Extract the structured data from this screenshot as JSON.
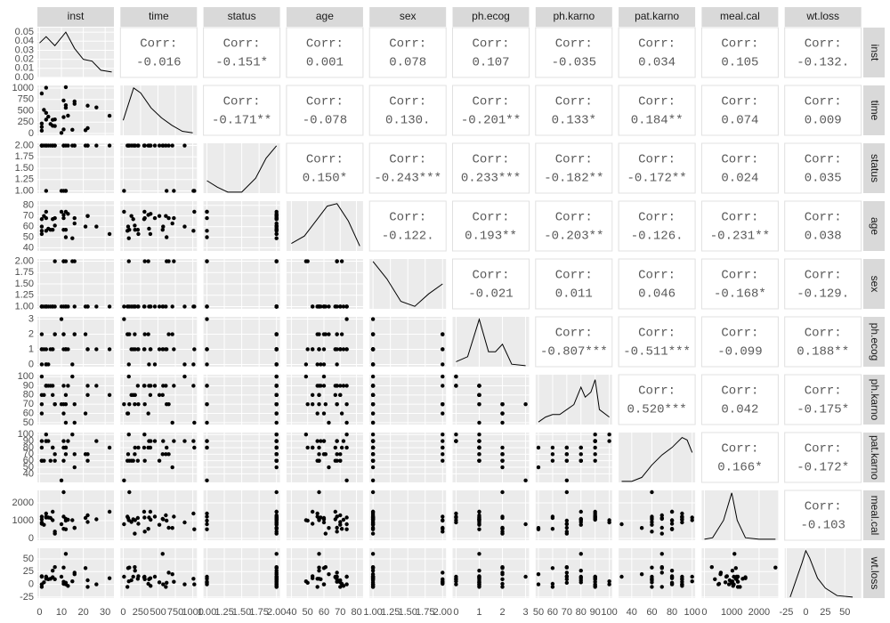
{
  "chart_data": {
    "type": "scatter-matrix",
    "corr_label": "Corr:",
    "variables": [
      {
        "name": "inst",
        "lim": [
          -1,
          34
        ],
        "ticks": [
          0,
          10,
          20,
          30
        ],
        "yticks": [
          {
            "value": 0,
            "label": "0.00"
          },
          {
            "value": 0.01,
            "label": "0.01"
          },
          {
            "value": 0.02,
            "label": "0.02"
          },
          {
            "value": 0.03,
            "label": "0.03"
          },
          {
            "value": 0.04,
            "label": "0.04"
          },
          {
            "value": 0.05,
            "label": "0.05"
          }
        ],
        "density_x": [
          0,
          3,
          7,
          12,
          16,
          20,
          24,
          28,
          33
        ],
        "density_y": [
          0.038,
          0.045,
          0.035,
          0.05,
          0.032,
          0.02,
          0.018,
          0.008,
          0.006
        ],
        "density_ylim": [
          0,
          0.055
        ],
        "values": [
          3,
          3,
          3,
          5,
          1,
          12,
          7,
          11,
          1,
          7,
          6,
          16,
          11,
          21,
          12,
          1,
          22,
          16,
          1,
          11,
          6,
          15,
          12,
          4,
          13,
          2,
          26,
          22,
          32,
          10
        ]
      },
      {
        "name": "time",
        "lim": [
          -40,
          1060
        ],
        "ticks": [
          0,
          250,
          500,
          750,
          1000
        ],
        "yticks": [
          0,
          250,
          500,
          750,
          1000
        ],
        "density_x": [
          0,
          150,
          250,
          400,
          550,
          700,
          850,
          1000
        ],
        "density_y": [
          0.3,
          0.95,
          0.85,
          0.55,
          0.35,
          0.2,
          0.08,
          0.05
        ],
        "density_ylim": [
          0,
          1
        ],
        "values": [
          306,
          455,
          1010,
          210,
          883,
          1022,
          310,
          361,
          218,
          166,
          170,
          654,
          728,
          71,
          567,
          144,
          613,
          707,
          61,
          88,
          301,
          81,
          624,
          371,
          394,
          520,
          574,
          118,
          390,
          12
        ]
      },
      {
        "name": "status",
        "lim": [
          0.95,
          2.05
        ],
        "ticks": [
          {
            "value": 1,
            "label": "1.00"
          },
          {
            "value": 1.25,
            "label": "1.25"
          },
          {
            "value": 1.5,
            "label": "1.50"
          },
          {
            "value": 1.75,
            "label": "1.75"
          },
          {
            "value": 2,
            "label": "2.00"
          }
        ],
        "yticks": [
          {
            "value": 1,
            "label": "1.00"
          },
          {
            "value": 1.25,
            "label": "1.25"
          },
          {
            "value": 1.5,
            "label": "1.50"
          },
          {
            "value": 1.75,
            "label": "1.75"
          },
          {
            "value": 2,
            "label": "2.00"
          }
        ],
        "density_x": [
          1,
          1.15,
          1.3,
          1.5,
          1.7,
          1.85,
          2
        ],
        "density_y": [
          0.25,
          0.12,
          0.02,
          0.02,
          0.3,
          0.7,
          0.95
        ],
        "density_ylim": [
          0,
          1
        ],
        "values": [
          2,
          2,
          1,
          2,
          2,
          1,
          2,
          2,
          2,
          2,
          2,
          2,
          1,
          2,
          2,
          2,
          2,
          2,
          2,
          2,
          2,
          2,
          1,
          2,
          2,
          2,
          2,
          2,
          2,
          1
        ]
      },
      {
        "name": "age",
        "lim": [
          37,
          84
        ],
        "ticks": [
          40,
          50,
          60,
          70,
          80
        ],
        "yticks": [
          40,
          50,
          60,
          70,
          80
        ],
        "density_x": [
          40,
          48,
          55,
          62,
          68,
          75,
          82
        ],
        "density_y": [
          0.15,
          0.3,
          0.6,
          0.9,
          0.95,
          0.6,
          0.1
        ],
        "density_ylim": [
          0,
          1
        ],
        "values": [
          74,
          68,
          56,
          57,
          60,
          74,
          68,
          71,
          53,
          61,
          57,
          68,
          68,
          60,
          57,
          67,
          70,
          63,
          56,
          57,
          67,
          49,
          50,
          58,
          72,
          70,
          60,
          70,
          53,
          74
        ]
      },
      {
        "name": "sex",
        "lim": [
          0.95,
          2.05
        ],
        "ticks": [
          {
            "value": 1,
            "label": "1.00"
          },
          {
            "value": 1.25,
            "label": "1.25"
          },
          {
            "value": 1.5,
            "label": "1.50"
          },
          {
            "value": 1.75,
            "label": "1.75"
          },
          {
            "value": 2,
            "label": "2.00"
          }
        ],
        "yticks": [
          {
            "value": 1,
            "label": "1.00"
          },
          {
            "value": 1.25,
            "label": "1.25"
          },
          {
            "value": 1.5,
            "label": "1.50"
          },
          {
            "value": 1.75,
            "label": "1.75"
          },
          {
            "value": 2,
            "label": "2.00"
          }
        ],
        "density_x": [
          1,
          1.2,
          1.4,
          1.6,
          1.8,
          2
        ],
        "density_y": [
          0.95,
          0.6,
          0.15,
          0.05,
          0.3,
          0.5
        ],
        "density_ylim": [
          0,
          1
        ],
        "values": [
          1,
          1,
          1,
          1,
          1,
          1,
          2,
          2,
          1,
          1,
          1,
          2,
          2,
          1,
          1,
          1,
          1,
          1,
          1,
          1,
          1,
          2,
          2,
          1,
          1,
          1,
          1,
          1,
          1,
          1
        ]
      },
      {
        "name": "ph.ecog",
        "lim": [
          -0.15,
          3.15
        ],
        "ticks": [
          0,
          1,
          2,
          3
        ],
        "yticks": [
          0,
          1,
          2,
          3
        ],
        "density_x": [
          0,
          0.5,
          1,
          1.4,
          1.7,
          2,
          2.4,
          3
        ],
        "density_y": [
          0.1,
          0.2,
          0.95,
          0.3,
          0.3,
          0.45,
          0.05,
          0.02
        ],
        "density_ylim": [
          0,
          1
        ],
        "values": [
          1,
          0,
          0,
          1,
          0,
          1,
          2,
          2,
          1,
          2,
          1,
          2,
          1,
          2,
          1,
          1,
          1,
          2,
          2,
          2,
          1,
          0,
          1,
          0,
          1,
          1,
          1,
          1,
          1,
          3
        ]
      },
      {
        "name": "ph.karno",
        "lim": [
          48,
          102
        ],
        "ticks": [
          50,
          60,
          70,
          80,
          90,
          100
        ],
        "yticks": [
          50,
          60,
          70,
          80,
          90,
          100
        ],
        "density_x": [
          50,
          55,
          60,
          65,
          70,
          75,
          80,
          83,
          87,
          90,
          93,
          100
        ],
        "density_y": [
          0.05,
          0.15,
          0.2,
          0.2,
          0.3,
          0.4,
          0.75,
          0.55,
          0.65,
          0.9,
          0.3,
          0.15
        ],
        "density_ylim": [
          0,
          1
        ],
        "values": [
          90,
          90,
          90,
          90,
          100,
          50,
          70,
          60,
          70,
          70,
          80,
          70,
          90,
          60,
          80,
          80,
          90,
          50,
          60,
          70,
          90,
          100,
          70,
          90,
          90,
          80,
          90,
          80,
          80,
          70
        ]
      },
      {
        "name": "pat.karno",
        "lim": [
          27,
          103
        ],
        "ticks": [
          40,
          60,
          80,
          100
        ],
        "yticks": [
          40,
          50,
          60,
          70,
          80,
          90,
          100
        ],
        "density_x": [
          30,
          40,
          50,
          60,
          70,
          80,
          90,
          95,
          100
        ],
        "density_y": [
          0.02,
          0.02,
          0.1,
          0.35,
          0.55,
          0.7,
          0.9,
          0.85,
          0.6
        ],
        "density_ylim": [
          0,
          1
        ],
        "values": [
          100,
          90,
          90,
          60,
          90,
          80,
          60,
          80,
          80,
          70,
          80,
          70,
          90,
          70,
          70,
          60,
          70,
          50,
          60,
          60,
          80,
          100,
          80,
          90,
          90,
          60,
          90,
          60,
          80,
          30
        ]
      },
      {
        "name": "meal.cal",
        "lim": [
          -100,
          2700
        ],
        "ticks": [
          0,
          1000,
          2000
        ],
        "yticks": [
          0,
          1000,
          2000
        ],
        "density_x": [
          0,
          300,
          700,
          1000,
          1200,
          1500,
          2000,
          2600
        ],
        "density_y": [
          0.02,
          0.05,
          0.4,
          0.95,
          0.4,
          0.05,
          0.02,
          0.02
        ],
        "density_ylim": [
          0,
          1
        ],
        "values": [
          1175,
          1225,
          1400,
          1150,
          900,
          513,
          384,
          538,
          825,
          271,
          1025,
          600,
          1225,
          1150,
          1100,
          1075,
          1300,
          588,
          1225,
          2600,
          1500,
          1025,
          1000,
          1175,
          1050,
          768,
          1075,
          925,
          1500,
          800
        ]
      },
      {
        "name": "wt.loss",
        "lim": [
          -27,
          71
        ],
        "ticks": [
          -25,
          0,
          25,
          50
        ],
        "yticks": [
          -25,
          0,
          25,
          50
        ],
        "density_x": [
          -20,
          -5,
          0,
          5,
          15,
          25,
          40,
          60
        ],
        "density_y": [
          0.02,
          0.7,
          0.95,
          0.8,
          0.4,
          0.2,
          0.05,
          0.02
        ],
        "density_ylim": [
          0,
          1
        ],
        "values": [
          15,
          15,
          11,
          11,
          0,
          0,
          10,
          1,
          16,
          34,
          27,
          23,
          5,
          32,
          60,
          15,
          -5,
          20,
          -5,
          33,
          14,
          6,
          3,
          10,
          -3,
          4,
          0,
          8,
          12,
          15
        ]
      }
    ],
    "correlations": [
      [
        "-0.016",
        "-0.151*",
        "0.001",
        "0.078",
        "0.107",
        "-0.035",
        "0.034",
        "0.105",
        "-0.132."
      ],
      [
        "-0.171**",
        "-0.078",
        "0.130.",
        "-0.201**",
        "0.133*",
        "0.184**",
        "0.074",
        "0.009"
      ],
      [
        "0.150*",
        "-0.243***",
        "0.233***",
        "-0.182**",
        "-0.172**",
        "0.024",
        "0.035"
      ],
      [
        "-0.122.",
        "0.193**",
        "-0.203**",
        "-0.126.",
        "-0.231**",
        "0.038"
      ],
      [
        "-0.021",
        "0.011",
        "0.046",
        "-0.168*",
        "-0.129."
      ],
      [
        "-0.807***",
        "-0.511***",
        "-0.099",
        "0.188**"
      ],
      [
        "0.520***",
        "0.042",
        "-0.175*"
      ],
      [
        "0.166*",
        "-0.172*"
      ],
      [
        "-0.103"
      ]
    ]
  }
}
